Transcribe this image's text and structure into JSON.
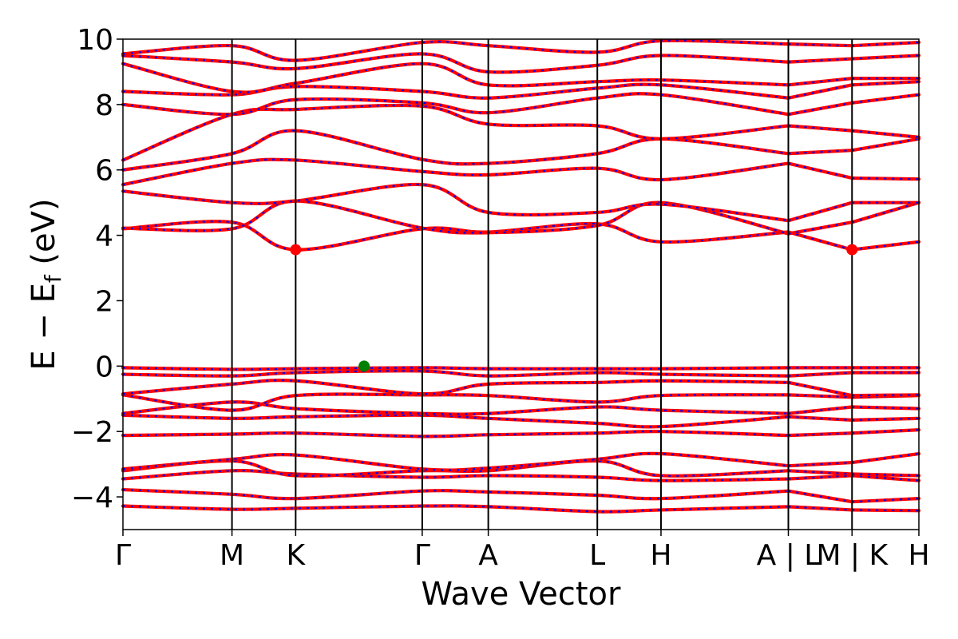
{
  "chart_data": {
    "type": "line",
    "xlabel": "Wave Vector",
    "ylabel": "E − E",
    "ylabel_sub": "f",
    "ylabel_unit": " (eV)",
    "ylim": [
      -5,
      10
    ],
    "yticks": [
      {
        "value": 10,
        "label": "10"
      },
      {
        "value": 8,
        "label": "8"
      },
      {
        "value": 6,
        "label": "6"
      },
      {
        "value": 4,
        "label": "4"
      },
      {
        "value": 2,
        "label": "2"
      },
      {
        "value": 0,
        "label": "0"
      },
      {
        "value": -2,
        "label": "−2"
      },
      {
        "value": -4,
        "label": "−4"
      }
    ],
    "kpoints": [
      {
        "x": 0.0,
        "label": "Γ"
      },
      {
        "x": 0.137,
        "label": "M"
      },
      {
        "x": 0.217,
        "label": "K"
      },
      {
        "x": 0.376,
        "label": "Γ"
      },
      {
        "x": 0.459,
        "label": "A"
      },
      {
        "x": 0.596,
        "label": "L"
      },
      {
        "x": 0.676,
        "label": "H"
      },
      {
        "x": 0.836,
        "label": "A | L"
      },
      {
        "x": 0.916,
        "label": "M | K"
      },
      {
        "x": 1.0,
        "label": "H"
      }
    ],
    "segments": [
      [
        0,
        0.836
      ],
      [
        0.836,
        0.916
      ],
      [
        0.916,
        1.0
      ]
    ],
    "colors": {
      "spin_up": "#ff0000",
      "spin_down": "#0000ff",
      "cbm": "#ff0000",
      "vbm": "#008000"
    },
    "cbm_points": [
      {
        "x": 0.217,
        "y": 3.56
      },
      {
        "x": 0.916,
        "y": 3.56
      }
    ],
    "vbm_point": {
      "x": 0.303,
      "y": 0.0
    },
    "bands": [
      {
        "name": "",
        "values": [
          [
            0,
            -4.28
          ],
          [
            0.137,
            -4.38
          ],
          [
            0.217,
            -4.35
          ],
          [
            0.376,
            -4.28
          ],
          [
            0.459,
            -4.3
          ],
          [
            0.596,
            -4.45
          ],
          [
            0.676,
            -4.4
          ],
          [
            0.836,
            -4.3
          ],
          [
            0.916,
            -4.4
          ],
          [
            1.0,
            -4.42
          ]
        ]
      },
      {
        "name": "",
        "values": [
          [
            0,
            -3.78
          ],
          [
            0.137,
            -3.92
          ],
          [
            0.217,
            -4.05
          ],
          [
            0.376,
            -3.82
          ],
          [
            0.459,
            -3.85
          ],
          [
            0.596,
            -3.95
          ],
          [
            0.676,
            -4.05
          ],
          [
            0.836,
            -3.82
          ],
          [
            0.916,
            -4.15
          ],
          [
            1.0,
            -4.05
          ]
        ]
      },
      {
        "name": "",
        "values": [
          [
            0,
            -3.45
          ],
          [
            0.137,
            -3.2
          ],
          [
            0.217,
            -3.3
          ],
          [
            0.376,
            -3.4
          ],
          [
            0.459,
            -3.35
          ],
          [
            0.596,
            -3.4
          ],
          [
            0.676,
            -3.5
          ],
          [
            0.836,
            -3.45
          ],
          [
            0.916,
            -3.35
          ],
          [
            1.0,
            -3.5
          ]
        ]
      },
      {
        "name": "",
        "values": [
          [
            0,
            -3.2
          ],
          [
            0.137,
            -2.9
          ],
          [
            0.217,
            -3.35
          ],
          [
            0.376,
            -3.2
          ],
          [
            0.459,
            -3.2
          ],
          [
            0.596,
            -2.9
          ],
          [
            0.676,
            -3.35
          ],
          [
            0.836,
            -3.2
          ],
          [
            0.916,
            -3.3
          ],
          [
            1.0,
            -3.35
          ]
        ]
      },
      {
        "name": "",
        "values": [
          [
            0,
            -3.15
          ],
          [
            0.137,
            -2.85
          ],
          [
            0.217,
            -2.72
          ],
          [
            0.376,
            -3.15
          ],
          [
            0.459,
            -3.12
          ],
          [
            0.596,
            -2.85
          ],
          [
            0.676,
            -2.68
          ],
          [
            0.836,
            -3.05
          ],
          [
            0.916,
            -2.95
          ],
          [
            1.0,
            -2.68
          ]
        ]
      },
      {
        "name": "",
        "values": [
          [
            0,
            -2.12
          ],
          [
            0.137,
            -2.08
          ],
          [
            0.217,
            -2.05
          ],
          [
            0.376,
            -2.15
          ],
          [
            0.459,
            -2.1
          ],
          [
            0.596,
            -2.05
          ],
          [
            0.676,
            -2.0
          ],
          [
            0.836,
            -2.12
          ],
          [
            0.916,
            -2.05
          ],
          [
            1.0,
            -1.95
          ]
        ]
      },
      {
        "name": "",
        "values": [
          [
            0,
            -1.5
          ],
          [
            0.137,
            -1.6
          ],
          [
            0.217,
            -1.55
          ],
          [
            0.376,
            -1.5
          ],
          [
            0.459,
            -1.6
          ],
          [
            0.596,
            -1.75
          ],
          [
            0.676,
            -1.85
          ],
          [
            0.836,
            -1.55
          ],
          [
            0.916,
            -1.65
          ],
          [
            1.0,
            -1.6
          ]
        ]
      },
      {
        "name": "",
        "values": [
          [
            0,
            -1.45
          ],
          [
            0.137,
            -1.1
          ],
          [
            0.217,
            -1.3
          ],
          [
            0.376,
            -1.45
          ],
          [
            0.459,
            -1.45
          ],
          [
            0.596,
            -1.25
          ],
          [
            0.676,
            -1.35
          ],
          [
            0.836,
            -1.45
          ],
          [
            0.916,
            -1.25
          ],
          [
            1.0,
            -1.3
          ]
        ]
      },
      {
        "name": "",
        "values": [
          [
            0,
            -0.88
          ],
          [
            0.137,
            -1.35
          ],
          [
            0.217,
            -0.9
          ],
          [
            0.376,
            -0.88
          ],
          [
            0.459,
            -0.9
          ],
          [
            0.596,
            -1.1
          ],
          [
            0.676,
            -0.9
          ],
          [
            0.836,
            -0.88
          ],
          [
            0.916,
            -0.95
          ],
          [
            1.0,
            -0.9
          ]
        ]
      },
      {
        "name": "",
        "values": [
          [
            0,
            -0.85
          ],
          [
            0.137,
            -0.55
          ],
          [
            0.217,
            -0.45
          ],
          [
            0.376,
            -0.85
          ],
          [
            0.459,
            -0.55
          ],
          [
            0.596,
            -0.5
          ],
          [
            0.676,
            -0.45
          ],
          [
            0.836,
            -0.5
          ],
          [
            0.916,
            -0.9
          ],
          [
            1.0,
            -0.88
          ]
        ]
      },
      {
        "name": "",
        "values": [
          [
            0,
            -0.25
          ],
          [
            0.137,
            -0.3
          ],
          [
            0.217,
            -0.2
          ],
          [
            0.376,
            -0.15
          ],
          [
            0.459,
            -0.3
          ],
          [
            0.596,
            -0.2
          ],
          [
            0.676,
            -0.25
          ],
          [
            0.836,
            -0.3
          ],
          [
            0.916,
            -0.2
          ],
          [
            1.0,
            -0.2
          ]
        ]
      },
      {
        "name": "",
        "values": [
          [
            0,
            -0.05
          ],
          [
            0.137,
            -0.1
          ],
          [
            0.217,
            -0.08
          ],
          [
            0.376,
            -0.05
          ],
          [
            0.459,
            -0.08
          ],
          [
            0.596,
            -0.08
          ],
          [
            0.676,
            -0.08
          ],
          [
            0.836,
            -0.05
          ],
          [
            0.916,
            -0.05
          ],
          [
            1.0,
            -0.05
          ]
        ]
      },
      {
        "name": "",
        "values": [
          [
            0,
            4.2
          ],
          [
            0.137,
            4.4
          ],
          [
            0.217,
            3.56
          ],
          [
            0.376,
            4.2
          ],
          [
            0.459,
            4.1
          ],
          [
            0.596,
            4.35
          ],
          [
            0.676,
            3.8
          ],
          [
            0.836,
            4.1
          ],
          [
            0.916,
            3.56
          ],
          [
            1.0,
            3.8
          ]
        ]
      },
      {
        "name": "",
        "values": [
          [
            0,
            4.22
          ],
          [
            0.137,
            4.2
          ],
          [
            0.217,
            5.05
          ],
          [
            0.376,
            4.22
          ],
          [
            0.459,
            4.08
          ],
          [
            0.596,
            4.3
          ],
          [
            0.676,
            5.0
          ],
          [
            0.836,
            4.05
          ],
          [
            0.916,
            4.4
          ],
          [
            1.0,
            5.0
          ]
        ]
      },
      {
        "name": "",
        "values": [
          [
            0,
            5.35
          ],
          [
            0.137,
            5.0
          ],
          [
            0.217,
            5.05
          ],
          [
            0.376,
            5.55
          ],
          [
            0.459,
            4.7
          ],
          [
            0.596,
            4.7
          ],
          [
            0.676,
            4.95
          ],
          [
            0.836,
            4.45
          ],
          [
            0.916,
            5.0
          ],
          [
            1.0,
            5.0
          ]
        ]
      },
      {
        "name": "",
        "values": [
          [
            0,
            5.55
          ],
          [
            0.137,
            6.2
          ],
          [
            0.217,
            6.3
          ],
          [
            0.376,
            5.95
          ],
          [
            0.459,
            5.85
          ],
          [
            0.596,
            6.05
          ],
          [
            0.676,
            5.7
          ],
          [
            0.836,
            6.2
          ],
          [
            0.916,
            5.75
          ],
          [
            1.0,
            5.72
          ]
        ]
      },
      {
        "name": "",
        "values": [
          [
            0,
            6.0
          ],
          [
            0.137,
            6.5
          ],
          [
            0.217,
            7.2
          ],
          [
            0.376,
            6.32
          ],
          [
            0.459,
            6.2
          ],
          [
            0.596,
            6.5
          ],
          [
            0.676,
            6.95
          ],
          [
            0.836,
            6.5
          ],
          [
            0.916,
            6.6
          ],
          [
            1.0,
            6.95
          ]
        ]
      },
      {
        "name": "",
        "values": [
          [
            0,
            6.3
          ],
          [
            0.137,
            7.7
          ],
          [
            0.217,
            7.85
          ],
          [
            0.376,
            7.95
          ],
          [
            0.459,
            7.4
          ],
          [
            0.596,
            7.35
          ],
          [
            0.676,
            6.95
          ],
          [
            0.836,
            7.35
          ],
          [
            0.916,
            7.2
          ],
          [
            1.0,
            7.0
          ]
        ]
      },
      {
        "name": "",
        "values": [
          [
            0,
            8.0
          ],
          [
            0.137,
            7.7
          ],
          [
            0.217,
            8.15
          ],
          [
            0.376,
            8.05
          ],
          [
            0.459,
            7.75
          ],
          [
            0.596,
            8.2
          ],
          [
            0.676,
            8.3
          ],
          [
            0.836,
            7.7
          ],
          [
            0.916,
            8.05
          ],
          [
            1.0,
            8.3
          ]
        ]
      },
      {
        "name": "",
        "values": [
          [
            0,
            8.4
          ],
          [
            0.137,
            8.3
          ],
          [
            0.217,
            8.55
          ],
          [
            0.376,
            8.4
          ],
          [
            0.459,
            8.2
          ],
          [
            0.596,
            8.5
          ],
          [
            0.676,
            8.6
          ],
          [
            0.836,
            8.2
          ],
          [
            0.916,
            8.6
          ],
          [
            1.0,
            8.7
          ]
        ]
      },
      {
        "name": "",
        "values": [
          [
            0,
            9.25
          ],
          [
            0.137,
            8.4
          ],
          [
            0.217,
            8.65
          ],
          [
            0.376,
            9.25
          ],
          [
            0.459,
            8.6
          ],
          [
            0.596,
            8.7
          ],
          [
            0.676,
            8.75
          ],
          [
            0.836,
            8.6
          ],
          [
            0.916,
            8.8
          ],
          [
            1.0,
            8.8
          ]
        ]
      },
      {
        "name": "",
        "values": [
          [
            0,
            9.5
          ],
          [
            0.137,
            9.3
          ],
          [
            0.217,
            9.1
          ],
          [
            0.376,
            9.55
          ],
          [
            0.459,
            9.0
          ],
          [
            0.596,
            9.2
          ],
          [
            0.676,
            9.5
          ],
          [
            0.836,
            9.3
          ],
          [
            0.916,
            9.4
          ],
          [
            1.0,
            9.5
          ]
        ]
      },
      {
        "name": "",
        "values": [
          [
            0,
            9.55
          ],
          [
            0.137,
            9.8
          ],
          [
            0.217,
            9.35
          ],
          [
            0.376,
            9.9
          ],
          [
            0.459,
            9.8
          ],
          [
            0.596,
            9.6
          ],
          [
            0.676,
            9.95
          ],
          [
            0.836,
            9.85
          ],
          [
            0.916,
            9.8
          ],
          [
            1.0,
            9.9
          ]
        ]
      }
    ]
  }
}
